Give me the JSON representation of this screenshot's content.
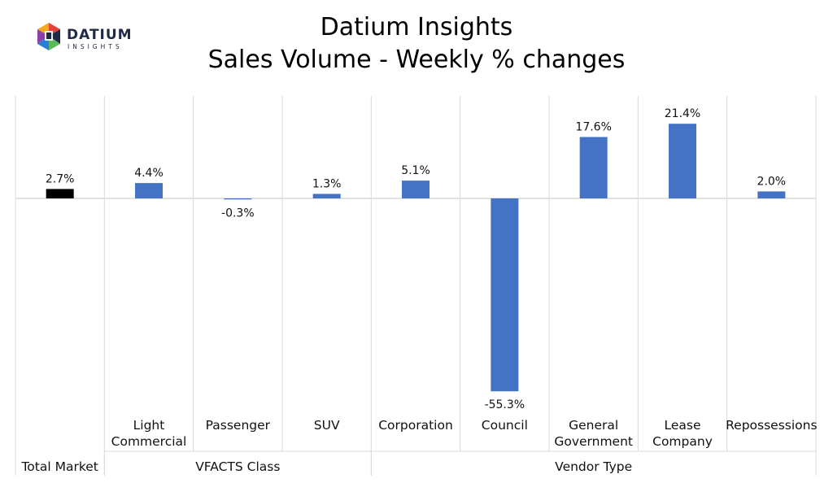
{
  "logo": {
    "text": "DATIUM",
    "subtext": "INSIGHTS",
    "colors": [
      "#e8403a",
      "#f4a81d",
      "#5cb85c",
      "#2a7fd4",
      "#8b3fa8",
      "#1f2a44"
    ]
  },
  "title": {
    "line1": "Datium Insights",
    "line2": "Sales Volume - Weekly % changes"
  },
  "chart_data": {
    "type": "bar",
    "title": "Datium Insights Sales Volume - Weekly % changes",
    "categories": [
      [
        "Total Market"
      ],
      [
        "Light",
        "Commercial"
      ],
      [
        "Passenger"
      ],
      [
        "SUV"
      ],
      [
        "Corporation"
      ],
      [
        "Council"
      ],
      [
        "General",
        "Government"
      ],
      [
        "Lease",
        "Company"
      ],
      [
        "Repossessions"
      ]
    ],
    "values": [
      2.7,
      4.4,
      -0.3,
      1.3,
      5.1,
      -55.3,
      17.6,
      21.4,
      2.0
    ],
    "value_labels": [
      "2.7%",
      "4.4%",
      "-0.3%",
      "1.3%",
      "5.1%",
      "-55.3%",
      "17.6%",
      "21.4%",
      "2.0%"
    ],
    "bar_colors": [
      "#000000",
      "#4472c4",
      "#4472c4",
      "#4472c4",
      "#4472c4",
      "#4472c4",
      "#4472c4",
      "#4472c4",
      "#4472c4"
    ],
    "groups": [
      {
        "label": "Total Market",
        "start": 0,
        "end": 0
      },
      {
        "label": "VFACTS Class",
        "start": 1,
        "end": 3
      },
      {
        "label": "Vendor Type",
        "start": 4,
        "end": 8
      }
    ],
    "ylim": [
      -60,
      30
    ],
    "grid": "vertical separators",
    "colors": {
      "bar": "#4472c4",
      "total_bar": "#000000",
      "grid": "#d9d9d9"
    }
  }
}
